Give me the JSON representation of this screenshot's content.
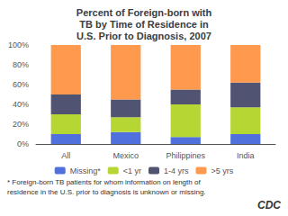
{
  "chart_data": {
    "type": "bar",
    "title": "Percent of Foreign-born with\nTB by Time of Residence in\nU.S. Prior to Diagnosis, 2007",
    "categories": [
      "All",
      "Mexico",
      "Philippines",
      "India"
    ],
    "series": [
      {
        "name": "Missing*",
        "values": [
          10,
          12,
          7,
          10
        ]
      },
      {
        "name": "<1 yr",
        "values": [
          20,
          15,
          33,
          27
        ]
      },
      {
        "name": "1-4 yrs",
        "values": [
          20,
          18,
          15,
          25
        ]
      },
      {
        "name": ">5 yrs",
        "values": [
          50,
          55,
          45,
          38
        ]
      }
    ],
    "stacked": true,
    "ylim": [
      0,
      100
    ],
    "yticks": [
      {
        "value": 0,
        "label": "0%"
      },
      {
        "value": 20,
        "label": "20%"
      },
      {
        "value": 40,
        "label": "40%"
      },
      {
        "value": 60,
        "label": "60%"
      },
      {
        "value": 80,
        "label": "80%"
      },
      {
        "value": 100,
        "label": "100%"
      }
    ],
    "grid": false,
    "legend": "bottom",
    "annotations": [
      "* Foreign-born TB patients for whom information on length of",
      "residence in the U.S. prior to diagnosis is unknown or missing.",
      "CDC"
    ]
  }
}
